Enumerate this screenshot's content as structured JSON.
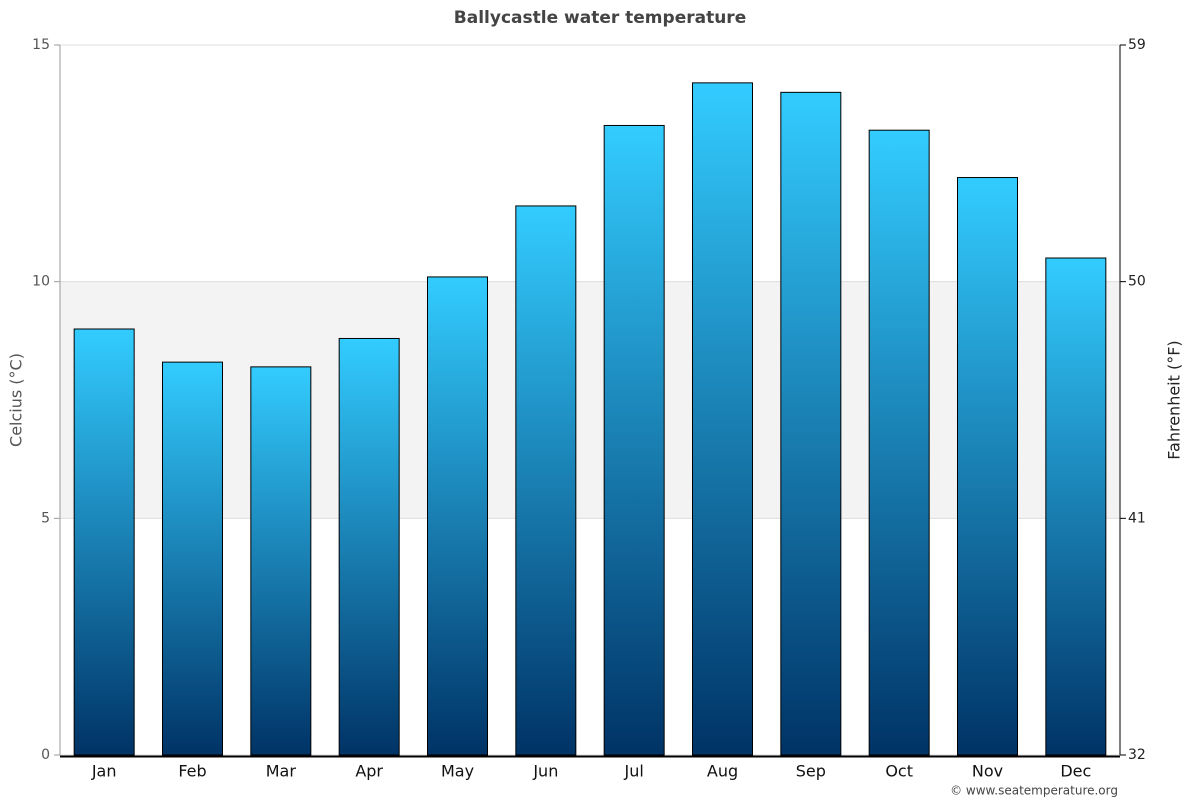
{
  "chart_data": {
    "type": "bar",
    "title": "Ballycastle water temperature",
    "y_label": "Celcius (°C)",
    "y2_label": "Fahrenheit (°F)",
    "credit": "© www.seatemperature.org",
    "categories": [
      "Jan",
      "Feb",
      "Mar",
      "Apr",
      "May",
      "Jun",
      "Jul",
      "Aug",
      "Sep",
      "Oct",
      "Nov",
      "Dec"
    ],
    "values": [
      9.0,
      8.3,
      8.2,
      8.8,
      10.1,
      11.6,
      13.3,
      14.2,
      14.0,
      13.2,
      12.2,
      10.5
    ],
    "gradient": [
      "#33ccff",
      "#003366"
    ],
    "ylim": [
      0,
      15
    ],
    "yticks": [
      0,
      5,
      10,
      15
    ],
    "y2lim": [
      32,
      59
    ],
    "y2ticks": [
      32,
      41,
      50,
      59
    ],
    "grid": true
  }
}
